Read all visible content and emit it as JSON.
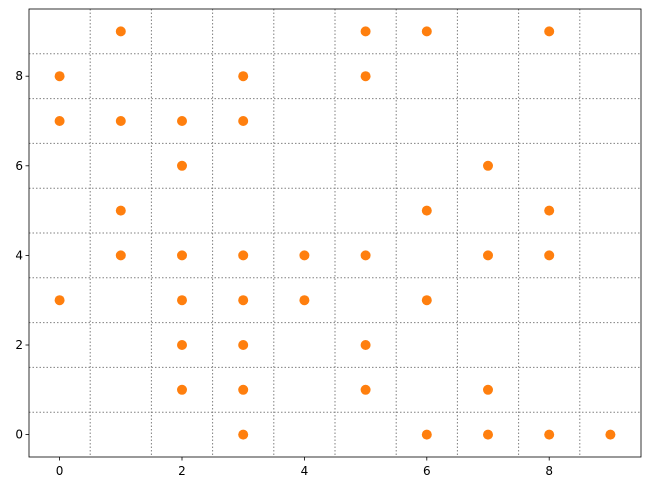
{
  "chart_data": {
    "type": "scatter",
    "series": [
      {
        "color": "#ff7f0e",
        "x": [
          1,
          5,
          6,
          8,
          0,
          3,
          5,
          0,
          1,
          2,
          3,
          2,
          7,
          1,
          6,
          8,
          1,
          2,
          3,
          4,
          5,
          7,
          8,
          0,
          2,
          3,
          4,
          6,
          2,
          3,
          5,
          2,
          3,
          5,
          7,
          3,
          6,
          7,
          8,
          9
        ],
        "values": [
          9,
          9,
          9,
          9,
          8,
          8,
          8,
          7,
          7,
          7,
          7,
          6,
          6,
          5,
          5,
          5,
          4,
          4,
          4,
          4,
          4,
          4,
          4,
          3,
          3,
          3,
          3,
          3,
          2,
          2,
          2,
          1,
          1,
          1,
          1,
          0,
          0,
          0,
          0,
          0
        ]
      }
    ],
    "xlim": [
      -0.5,
      9.5
    ],
    "ylim": [
      -0.5,
      9.5
    ],
    "xticks": [
      0,
      2,
      4,
      6,
      8
    ],
    "yticks": [
      0,
      2,
      4,
      6,
      8
    ],
    "xminorticks": [
      0.5,
      1.5,
      2.5,
      3.5,
      4.5,
      5.5,
      6.5,
      7.5,
      8.5
    ],
    "yminorticks": [
      0.5,
      1.5,
      2.5,
      3.5,
      4.5,
      5.5,
      6.5,
      7.5,
      8.5
    ],
    "grid": true
  }
}
